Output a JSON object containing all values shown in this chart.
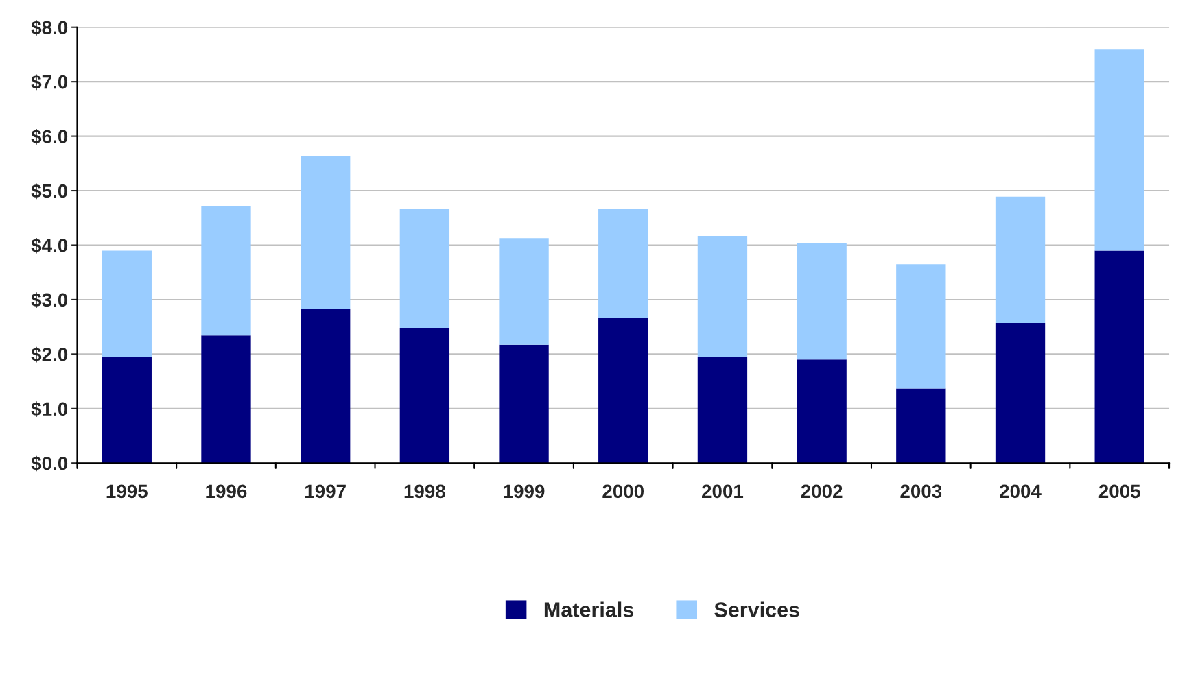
{
  "chart_data": {
    "type": "bar",
    "stacked": true,
    "categories": [
      "1995",
      "1996",
      "1997",
      "1998",
      "1999",
      "2000",
      "2001",
      "2002",
      "2003",
      "2004",
      "2005"
    ],
    "series": [
      {
        "name": "Materials",
        "color": "#000080",
        "values": [
          1.95,
          2.34,
          2.83,
          2.47,
          2.17,
          2.66,
          1.95,
          1.9,
          1.37,
          2.57,
          3.9
        ]
      },
      {
        "name": "Services",
        "color": "#99ccff",
        "values": [
          1.95,
          2.37,
          2.81,
          2.19,
          1.96,
          2.0,
          2.22,
          2.14,
          2.28,
          2.32,
          3.69
        ]
      }
    ],
    "ylim": [
      0,
      8
    ],
    "yticks": [
      {
        "value": 0,
        "label": "$0.0"
      },
      {
        "value": 1,
        "label": "$1.0"
      },
      {
        "value": 2,
        "label": "$2.0"
      },
      {
        "value": 3,
        "label": "$3.0"
      },
      {
        "value": 4,
        "label": "$4.0"
      },
      {
        "value": 5,
        "label": "$5.0"
      },
      {
        "value": 6,
        "label": "$6.0"
      },
      {
        "value": 7,
        "label": "$7.0"
      },
      {
        "value": 8,
        "label": "$8.0"
      }
    ],
    "grid": "y",
    "legend": "bottom"
  }
}
